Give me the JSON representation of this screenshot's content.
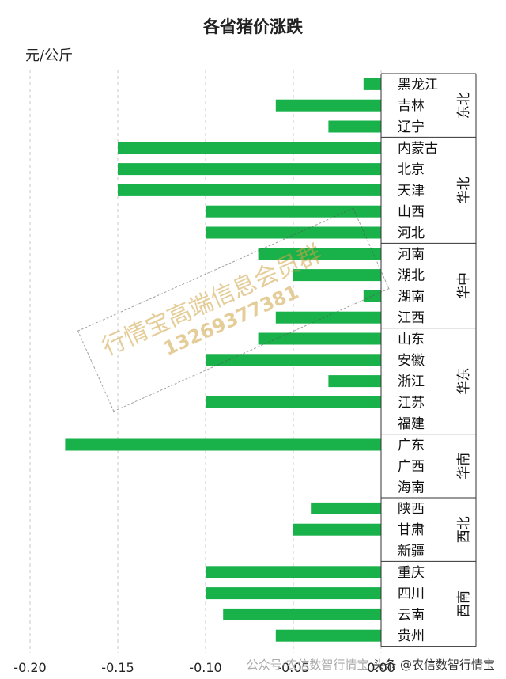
{
  "chart_data": {
    "type": "bar",
    "orientation": "horizontal",
    "title": "各省猪价涨跌",
    "ylabel": "元/公斤",
    "xlim": [
      -0.2,
      0.0
    ],
    "x_ticks": [
      "-0.20",
      "-0.15",
      "-0.10",
      "-0.05",
      "0.00"
    ],
    "grid": "vertical-dashed",
    "bar_color": "#19b14a",
    "categories": [
      "黑龙江",
      "吉林",
      "辽宁",
      "内蒙古",
      "北京",
      "天津",
      "山西",
      "河北",
      "河南",
      "湖北",
      "湖南",
      "江西",
      "山东",
      "安徽",
      "浙江",
      "江苏",
      "福建",
      "广东",
      "广西",
      "海南",
      "陕西",
      "甘肃",
      "新疆",
      "重庆",
      "四川",
      "云南",
      "贵州"
    ],
    "values": [
      -0.01,
      -0.06,
      -0.03,
      -0.15,
      -0.15,
      -0.15,
      -0.1,
      -0.1,
      -0.07,
      -0.05,
      -0.01,
      -0.06,
      -0.07,
      -0.1,
      -0.03,
      -0.1,
      0.0,
      -0.18,
      0.0,
      0.0,
      -0.04,
      -0.05,
      0.0,
      -0.1,
      -0.1,
      -0.09,
      -0.06
    ],
    "regions": [
      {
        "name": "东北",
        "count": 3
      },
      {
        "name": "华北",
        "count": 5
      },
      {
        "name": "华中",
        "count": 4
      },
      {
        "name": "华东",
        "count": 5
      },
      {
        "name": "华南",
        "count": 3
      },
      {
        "name": "西北",
        "count": 3
      },
      {
        "name": "西南",
        "count": 4
      }
    ]
  },
  "watermark": {
    "line1": "行情宝高端信息会员群",
    "line2": "13269377381"
  },
  "footer": {
    "faint": "公众号·农信数智行情宝",
    "text": "头条 @农信数智行情宝"
  }
}
